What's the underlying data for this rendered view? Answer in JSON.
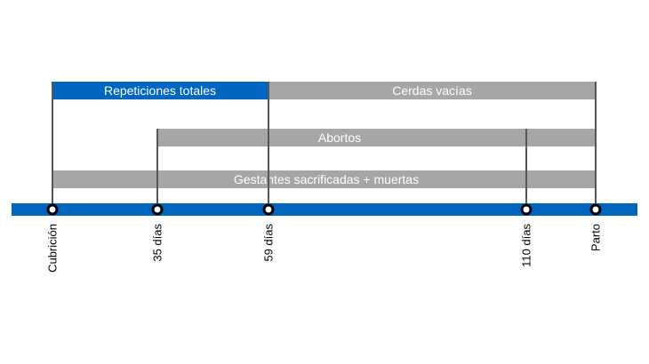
{
  "colors": {
    "timeline": "#0066c0",
    "blue_bar": "#0066c0",
    "gray_bar": "#a6a6a6",
    "connector": "#555555"
  },
  "milestones": [
    {
      "label": "Cubrición"
    },
    {
      "label": "35 días"
    },
    {
      "label": "59 días"
    },
    {
      "label": "110 días"
    },
    {
      "label": "Parto"
    }
  ],
  "bars": [
    {
      "label": "Repeticiones totales",
      "from": "Cubrición",
      "to": "59 días",
      "color": "blue"
    },
    {
      "label": "Cerdas vacías",
      "from": "59 días",
      "to": "Parto",
      "color": "gray"
    },
    {
      "label": "Abortos",
      "from": "35 días",
      "to": "Parto",
      "color": "gray"
    },
    {
      "label": "Gestantes sacrificadas + muertas",
      "from": "Cubrición",
      "to": "Parto",
      "color": "gray"
    }
  ]
}
